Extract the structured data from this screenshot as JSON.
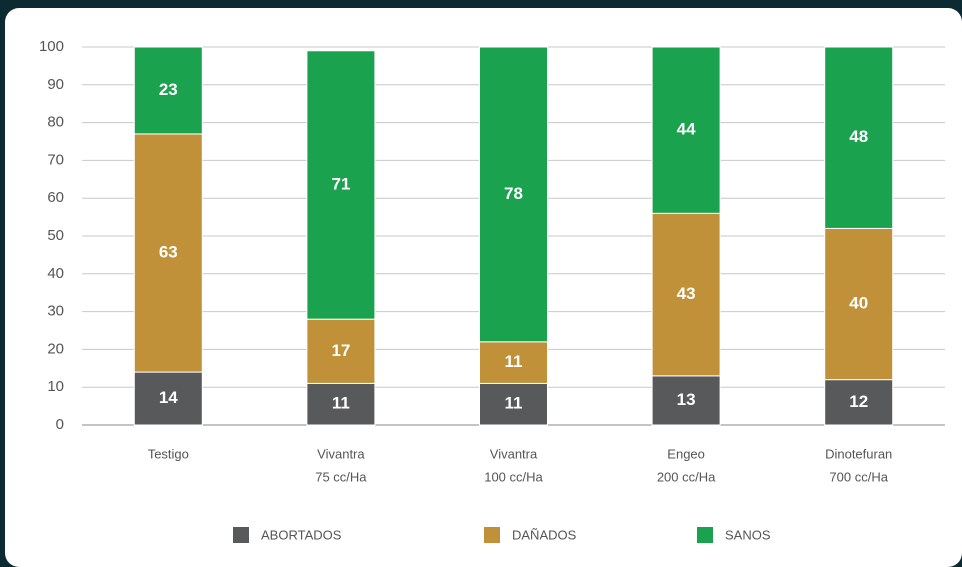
{
  "chart_data": {
    "type": "stacked_bar",
    "categories": [
      [
        "Testigo"
      ],
      [
        "Vivantra",
        "75 cc/Ha"
      ],
      [
        "Vivantra",
        "100 cc/Ha"
      ],
      [
        "Engeo",
        "200 cc/Ha"
      ],
      [
        "Dinotefuran",
        "700 cc/Ha"
      ]
    ],
    "series": [
      {
        "name": "ABORTADOS",
        "color": "#58595b",
        "values": [
          14,
          11,
          11,
          13,
          12
        ]
      },
      {
        "name": "DAÑADOS",
        "color": "#c1913a",
        "values": [
          63,
          17,
          11,
          43,
          40
        ]
      },
      {
        "name": "SANOS",
        "color": "#1ba24f",
        "values": [
          23,
          71,
          78,
          44,
          48
        ]
      }
    ],
    "ylim": [
      0,
      100
    ],
    "yticks": [
      0,
      10,
      20,
      30,
      40,
      50,
      60,
      70,
      80,
      90,
      100
    ],
    "grid": true,
    "legend": "bottom"
  }
}
